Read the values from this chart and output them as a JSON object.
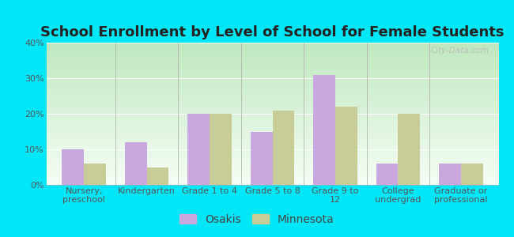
{
  "title": "School Enrollment by Level of School for Female Students",
  "categories": [
    "Nursery,\npreschool",
    "Kindergarten",
    "Grade 1 to 4",
    "Grade 5 to 8",
    "Grade 9 to\n12",
    "College\nundergrad",
    "Graduate or\nprofessional"
  ],
  "osakis": [
    10,
    12,
    20,
    15,
    31,
    6,
    6
  ],
  "minnesota": [
    6,
    5,
    20,
    21,
    22,
    20,
    6
  ],
  "bar_color_osakis": "#c9a8e0",
  "bar_color_minnesota": "#c8cc96",
  "bg_color_topleft": "#b8e8c8",
  "bg_color_topright": "#c8eee0",
  "bg_color_bottom": "#f0faf0",
  "outer_bg": "#00e8f8",
  "ylim": [
    0,
    40
  ],
  "yticks": [
    0,
    10,
    20,
    30,
    40
  ],
  "ytick_labels": [
    "0%",
    "10%",
    "20%",
    "30%",
    "40%"
  ],
  "bar_width": 0.35,
  "legend_labels": [
    "Osakis",
    "Minnesota"
  ],
  "title_fontsize": 13,
  "tick_fontsize": 8,
  "legend_fontsize": 10,
  "watermark": "City-Data.com"
}
